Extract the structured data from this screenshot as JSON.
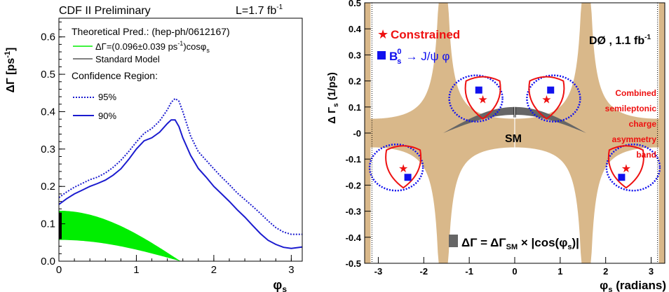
{
  "chart_data": [
    {
      "type": "line",
      "title": "CDF II Preliminary",
      "luminosity": "L=1.7 fb",
      "luminosity_sup": "-1",
      "ylabel": "ΔΓ [ps",
      "ylabel_sup": "-1",
      "ylabel_end": "]",
      "xlabel": "φ",
      "xlabel_sub": "s",
      "xlim": [
        0,
        3.14159
      ],
      "ylim": [
        0,
        0.65
      ],
      "xticks": [
        0,
        1,
        2,
        3
      ],
      "yticks": [
        0,
        0.1,
        0.2,
        0.3,
        0.4,
        0.5,
        0.6
      ],
      "ytick_labels": [
        "0.0",
        "0.1",
        "0.2",
        "0.3",
        "0.4",
        "0.5",
        "0.6"
      ],
      "legend": {
        "prediction_title": "Theoretical Pred.: (hep-ph/0612167)",
        "band_label": "ΔΓ=(0.096±0.039 ps",
        "band_label_sup": "-1",
        "band_label_end": ")cosφ",
        "band_label_sub": "s",
        "sm_label": "Standard Model",
        "cr_title": "Confidence Region:",
        "cl95_label": "95%",
        "cl90_label": "90%"
      },
      "band": {
        "center": 0.096,
        "halfwidth": 0.039,
        "color": "#00ee00"
      },
      "sm_point": {
        "x": 0,
        "y_low": 0.06,
        "y_high": 0.13
      },
      "series": [
        {
          "key": "cl95",
          "style": "dotted",
          "color": "#1b1bcf",
          "x": [
            0.0,
            0.1,
            0.2,
            0.3,
            0.4,
            0.5,
            0.6,
            0.7,
            0.8,
            0.9,
            1.0,
            1.1,
            1.2,
            1.3,
            1.4,
            1.45,
            1.5,
            1.55,
            1.6,
            1.7,
            1.8,
            1.9,
            2.0,
            2.1,
            2.2,
            2.3,
            2.4,
            2.5,
            2.6,
            2.7,
            2.8,
            2.9,
            3.0,
            3.14
          ],
          "y": [
            0.17,
            0.185,
            0.198,
            0.208,
            0.218,
            0.225,
            0.236,
            0.251,
            0.27,
            0.293,
            0.319,
            0.342,
            0.355,
            0.375,
            0.405,
            0.425,
            0.435,
            0.428,
            0.4,
            0.335,
            0.293,
            0.27,
            0.247,
            0.225,
            0.205,
            0.183,
            0.165,
            0.147,
            0.128,
            0.108,
            0.09,
            0.078,
            0.072,
            0.072
          ]
        },
        {
          "key": "cl90",
          "style": "solid",
          "color": "#1b1bcf",
          "x": [
            0.0,
            0.1,
            0.2,
            0.3,
            0.4,
            0.5,
            0.6,
            0.7,
            0.8,
            0.9,
            1.0,
            1.1,
            1.2,
            1.3,
            1.4,
            1.45,
            1.5,
            1.55,
            1.6,
            1.7,
            1.8,
            1.9,
            2.0,
            2.1,
            2.2,
            2.3,
            2.4,
            2.5,
            2.6,
            2.7,
            2.8,
            2.9,
            3.0,
            3.14
          ],
          "y": [
            0.152,
            0.167,
            0.18,
            0.19,
            0.2,
            0.208,
            0.217,
            0.23,
            0.247,
            0.272,
            0.3,
            0.322,
            0.33,
            0.345,
            0.368,
            0.378,
            0.378,
            0.36,
            0.33,
            0.283,
            0.248,
            0.225,
            0.2,
            0.18,
            0.16,
            0.138,
            0.118,
            0.096,
            0.074,
            0.056,
            0.045,
            0.037,
            0.034,
            0.038
          ]
        }
      ]
    },
    {
      "type": "scatter",
      "experiment": "DØ , 1.1 fb",
      "experiment_sup": "-1",
      "ylabel": "Δ Γ",
      "ylabel_sub": "s",
      "ylabel_end": " (1/ps)",
      "xlabel": "φ",
      "xlabel_sub": "s",
      "xlabel_end": " (radians)",
      "xlim": [
        -3.3,
        3.3
      ],
      "ylim": [
        -0.5,
        0.5
      ],
      "xticks": [
        -3,
        -2,
        -1,
        0,
        1,
        2,
        3
      ],
      "yticks": [
        -0.5,
        -0.4,
        -0.3,
        -0.2,
        -0.1,
        0,
        0.1,
        0.2,
        0.3,
        0.4,
        0.5
      ],
      "ytick_labels": [
        "-0.5",
        "-0.4",
        "-0.3",
        "-0.2",
        "-0.1",
        "-0",
        "0.1",
        "0.2",
        "0.3",
        "0.4",
        "0.5"
      ],
      "legend": {
        "constrained_label": "Constrained",
        "bs_label_main": "B",
        "bs_label_sub": "s",
        "bs_label_sup": "0",
        "bs_label_end": "→ J/ψ φ"
      },
      "annotation": [
        "Combined",
        "semileptonic",
        "charge",
        "asymmetry",
        "band"
      ],
      "sm_label": "SM",
      "formula": {
        "part1": "ΔΓ = ΔΓ",
        "sub": "SM",
        "part2": " × |cos(φ",
        "sub2": "s",
        "part3": ")|"
      },
      "band_color": "#d9b88a",
      "sm_band_color": "#666666",
      "constrained_points": [
        {
          "x": -0.7,
          "y": 0.13
        },
        {
          "x": 0.7,
          "y": 0.13
        },
        {
          "x": -2.45,
          "y": -0.135
        },
        {
          "x": 2.45,
          "y": -0.135
        }
      ],
      "bs_points": [
        {
          "x": -0.79,
          "y": 0.165
        },
        {
          "x": 0.79,
          "y": 0.165
        },
        {
          "x": -2.35,
          "y": -0.17
        },
        {
          "x": 2.35,
          "y": -0.17
        }
      ],
      "colors": {
        "constrained": "#ee1111",
        "bs": "#1111ee"
      }
    }
  ]
}
